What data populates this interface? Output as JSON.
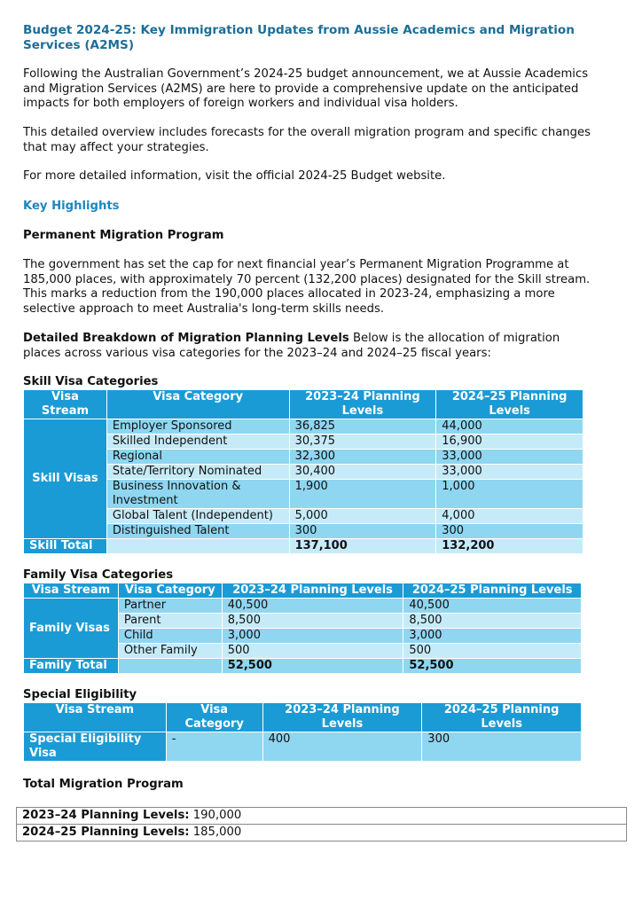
{
  "title": "Budget 2024-25: Key Immigration Updates from Aussie Academics and Migration Services (A2MS)",
  "intro": "Following the Australian Government’s 2024-25 budget announcement, we at Aussie Academics and Migration Services (A2MS) are here to provide a comprehensive update on the anticipated impacts for both employers of foreign workers and individual visa holders.",
  "overview": "This detailed overview includes forecasts for the overall migration program and specific changes that may affect your strategies.",
  "more_info": "For more detailed information, visit the official 2024-25 Budget website.",
  "key_highlights": "Key Highlights",
  "pmp_heading": "Permanent Migration Program",
  "pmp_text": "The government has set the cap for next financial year’s Permanent Migration Programme at 185,000 places, with approximately 70 percent (132,200 places) designated for the Skill stream. This marks a reduction from the 190,000 places allocated in 2023-24, emphasizing a more selective approach to meet Australia's long-term skills needs.",
  "breakdown_bold": "Detailed Breakdown of Migration Planning Levels",
  "breakdown_text": " Below is the allocation of migration places across various visa categories for the 2023–24 and 2024–25 fiscal years:",
  "skill": {
    "heading": "Skill Visa Categories",
    "headers": [
      "Visa Stream",
      "Visa Category",
      "2023–24 Planning Levels",
      "2024–25 Planning Levels"
    ],
    "stream": "Skill Visas",
    "rows": [
      [
        "Employer Sponsored",
        "36,825",
        "44,000"
      ],
      [
        "Skilled Independent",
        "30,375",
        "16,900"
      ],
      [
        "Regional",
        "32,300",
        "33,000"
      ],
      [
        "State/Territory Nominated",
        "30,400",
        "33,000"
      ],
      [
        "Business Innovation & Investment",
        "1,900",
        "1,000"
      ],
      [
        "Global Talent (Independent)",
        "5,000",
        "4,000"
      ],
      [
        "Distinguished Talent",
        "300",
        "300"
      ]
    ],
    "total": [
      "Skill Total",
      "137,100",
      "132,200"
    ]
  },
  "family": {
    "heading": "Family Visa Categories",
    "headers": [
      "Visa Stream",
      "Visa Category",
      "2023–24 Planning Levels",
      "2024–25 Planning Levels"
    ],
    "stream": "Family Visas",
    "rows": [
      [
        "Partner",
        "40,500",
        "40,500"
      ],
      [
        "Parent",
        "8,500",
        "8,500"
      ],
      [
        "Child",
        "3,000",
        "3,000"
      ],
      [
        "Other Family",
        "500",
        "500"
      ]
    ],
    "total": [
      "Family Total",
      "52,500",
      "52,500"
    ]
  },
  "special": {
    "heading": "Special Eligibility",
    "headers": [
      "Visa Stream",
      "Visa Category",
      "2023–24 Planning Levels",
      "2024–25 Planning Levels"
    ],
    "row": [
      "Special Eligibility Visa",
      "-",
      "400",
      "300"
    ]
  },
  "total": {
    "heading": "Total Migration Program",
    "rows": [
      {
        "label": "2023–24 Planning Levels:",
        "value": " 190,000"
      },
      {
        "label": "2024–25 Planning Levels:",
        "value": " 185,000"
      }
    ]
  }
}
